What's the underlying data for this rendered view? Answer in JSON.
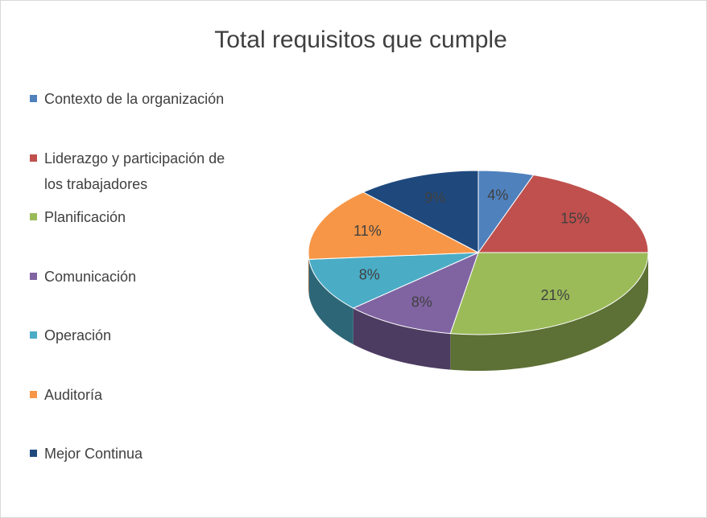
{
  "chart_data": {
    "type": "pie3d",
    "title": "Total requisitos que cumple",
    "categories": [
      "Contexto de la organización",
      "Liderazgo y participación de los trabajadores",
      "Planificación",
      "Comunicación",
      "Operación",
      "Auditoría",
      "Mejor Continua"
    ],
    "values": [
      4,
      15,
      21,
      8,
      8,
      11,
      9
    ],
    "value_labels": [
      "4%",
      "15%",
      "21%",
      "8%",
      "8%",
      "11%",
      "9%"
    ],
    "colors": [
      "#4f81bd",
      "#c0504d",
      "#9bbb59",
      "#8064a2",
      "#4bacc6",
      "#f79646",
      "#1f497d"
    ],
    "legend": "left"
  }
}
